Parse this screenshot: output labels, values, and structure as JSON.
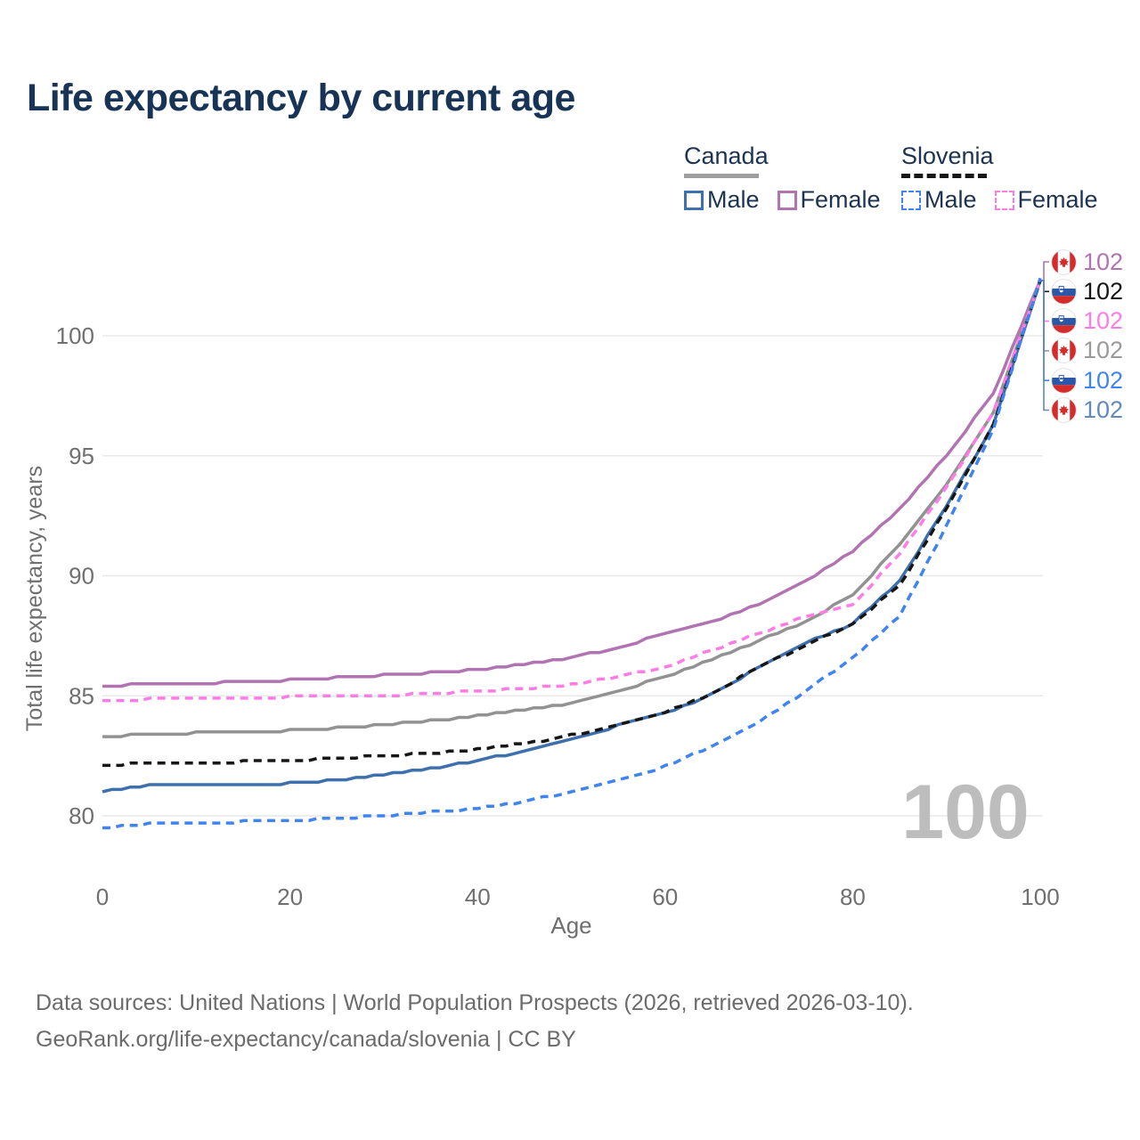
{
  "title": "Life expectancy by current age",
  "current_age_watermark": "100",
  "legend": {
    "canada": {
      "label": "Canada",
      "male_label": "Male",
      "female_label": "Female"
    },
    "slovenia": {
      "label": "Slovenia",
      "male_label": "Male",
      "female_label": "Female"
    }
  },
  "colors": {
    "title_navy": "#173457",
    "legend_text": "#1d3450",
    "canada_male": "#3d70ad",
    "canada_female": "#b173b1",
    "canada_total": "#929292",
    "slovenia_male": "#4084f0",
    "slovenia_female": "#ff7ce6",
    "slovenia_total": "#161616",
    "canada_male_label": "#6189bd",
    "canada_underline": "#9e9e9e",
    "gridline": "#e8e8e8",
    "axis_text": "#6f6f6f",
    "watermark": "#bdbdbd",
    "footer_text": "#6b6b6b",
    "flag_red": "#d52b2b",
    "flag_blue": "#2b57a7"
  },
  "chart_data": {
    "type": "line",
    "title": "Life expectancy by current age",
    "xlabel": "Age",
    "ylabel": "Total life expectancy, years",
    "x_ticks": [
      0,
      20,
      40,
      60,
      80,
      100
    ],
    "y_ticks": [
      80,
      85,
      90,
      95,
      100
    ],
    "xlim": [
      0,
      100
    ],
    "ylim": [
      79,
      103
    ],
    "grid": "horizontal",
    "legend_position": "top-right",
    "x": [
      0,
      5,
      10,
      15,
      20,
      25,
      30,
      35,
      40,
      45,
      50,
      55,
      60,
      65,
      70,
      75,
      80,
      85,
      90,
      95,
      100
    ],
    "series": [
      {
        "name": "Canada Female",
        "country": "canada",
        "sex": "female",
        "style": "solid",
        "color": "#b173b1",
        "values": [
          85.4,
          85.5,
          85.5,
          85.6,
          85.65,
          85.75,
          85.85,
          85.95,
          86.1,
          86.3,
          86.6,
          87.0,
          87.6,
          88.1,
          88.8,
          89.8,
          91.0,
          92.8,
          95.0,
          97.6,
          102.3
        ]
      },
      {
        "name": "Canada Total",
        "country": "canada",
        "sex": "total",
        "style": "solid",
        "color": "#929292",
        "values": [
          83.3,
          83.4,
          83.45,
          83.5,
          83.55,
          83.65,
          83.8,
          83.95,
          84.15,
          84.4,
          84.7,
          85.2,
          85.8,
          86.5,
          87.3,
          88.1,
          89.2,
          91.3,
          93.8,
          96.8,
          102.3
        ]
      },
      {
        "name": "Canada Male",
        "country": "canada",
        "sex": "male",
        "style": "solid",
        "color": "#3d70ad",
        "values": [
          81.0,
          81.25,
          81.3,
          81.3,
          81.35,
          81.5,
          81.7,
          81.95,
          82.3,
          82.7,
          83.2,
          83.75,
          84.25,
          85.05,
          86.2,
          87.2,
          88.0,
          89.8,
          92.9,
          96.3,
          102.3
        ]
      },
      {
        "name": "Slovenia Female",
        "country": "slovenia",
        "sex": "female",
        "style": "dashed",
        "color": "#ff7ce6",
        "values": [
          84.8,
          84.85,
          84.9,
          84.9,
          84.95,
          85.0,
          85.0,
          85.1,
          85.2,
          85.3,
          85.45,
          85.8,
          86.2,
          86.9,
          87.6,
          88.3,
          88.8,
          90.9,
          93.7,
          96.8,
          102.3
        ]
      },
      {
        "name": "Slovenia Total",
        "country": "slovenia",
        "sex": "total",
        "style": "dashed",
        "color": "#161616",
        "values": [
          82.1,
          82.2,
          82.2,
          82.25,
          82.3,
          82.4,
          82.5,
          82.6,
          82.75,
          83.0,
          83.35,
          83.8,
          84.3,
          85.1,
          86.2,
          87.1,
          88.0,
          89.6,
          92.8,
          96.3,
          102.3
        ]
      },
      {
        "name": "Slovenia Male",
        "country": "slovenia",
        "sex": "male",
        "style": "dashed",
        "color": "#4084f0",
        "values": [
          79.5,
          79.65,
          79.7,
          79.75,
          79.8,
          79.9,
          80.0,
          80.15,
          80.3,
          80.6,
          81.0,
          81.5,
          82.05,
          82.9,
          83.9,
          85.2,
          86.6,
          88.3,
          92.1,
          96.1,
          102.4
        ]
      }
    ]
  },
  "end_labels": [
    {
      "series": "Canada Female",
      "flag": "canada",
      "value": "102",
      "color": "#b173b1"
    },
    {
      "series": "Slovenia Total",
      "flag": "slovenia",
      "value": "102",
      "color": "#161616"
    },
    {
      "series": "Slovenia Female",
      "flag": "slovenia",
      "value": "102",
      "color": "#ff7ce6"
    },
    {
      "series": "Canada Total",
      "flag": "canada",
      "value": "102",
      "color": "#9a9a9a"
    },
    {
      "series": "Slovenia Male",
      "flag": "slovenia",
      "value": "102",
      "color": "#4084f0"
    },
    {
      "series": "Canada Male",
      "flag": "canada",
      "value": "102",
      "color": "#6189bd"
    }
  ],
  "footer": {
    "line1": "Data sources: United Nations | World Population Prospects (2026, retrieved 2026-03-10).",
    "line2": "GeoRank.org/life-expectancy/canada/slovenia | CC BY"
  }
}
